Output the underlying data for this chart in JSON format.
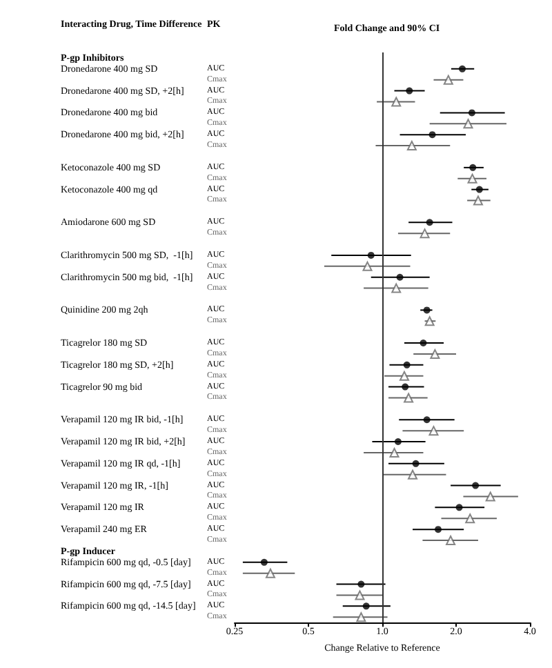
{
  "chart_data": {
    "type": "scatter",
    "orientation": "horizontal",
    "title": "Fold Change and 90% CI",
    "ylabel": "Interacting Drug, Time Difference",
    "xlabel": "Change Relative to Reference",
    "annotations": [
      "PK"
    ],
    "categories": [
      "P-gp Inhibitors",
      "Dronedarone 400 mg SD",
      null,
      "Dronedarone 400 mg SD, +2[h]",
      null,
      "Dronedarone 400 mg bid",
      null,
      "Dronedarone 400 mg bid, +2[h]",
      null,
      null,
      "Ketoconazole 400 mg SD",
      null,
      "Ketoconazole 400 mg qd",
      null,
      null,
      "Amiodarone 600 mg SD",
      null,
      null,
      "Clarithromycin 500 mg SD,  -1[h]",
      null,
      "Clarithromycin 500 mg bid,  -1[h]",
      null,
      null,
      "Quinidine 200 mg 2qh",
      null,
      null,
      "Ticagrelor 180 mg SD",
      null,
      "Ticagrelor 180 mg SD, +2[h]",
      null,
      "Ticagrelor 90 mg bid",
      null,
      null,
      "Verapamil 120 mg IR bid, -1[h]",
      null,
      "Verapamil 120 mg IR bid, +2[h]",
      null,
      "Verapamil 120 mg IR qd, -1[h]",
      null,
      "Verapamil 120 mg IR, -1[h]",
      null,
      "Verapamil 120 mg IR",
      null,
      "Verapamil 240 mg ER",
      null,
      "P-gp Inducer",
      "Rifampicin 600 mg qd, -0.5 [day]",
      null,
      "Rifampicin 600 mg qd, -7.5 [day]",
      null,
      "Rifampicin 600 mg qd, -14.5 [day]",
      null
    ],
    "series": [
      {
        "name": "AUC",
        "color": "#000000",
        "marker": "circle",
        "values": [
          null,
          2.12,
          null,
          1.29,
          null,
          2.32,
          null,
          1.6,
          null,
          null,
          2.34,
          null,
          2.49,
          null,
          null,
          1.56,
          null,
          null,
          0.9,
          null,
          1.18,
          null,
          null,
          1.52,
          null,
          null,
          1.47,
          null,
          1.26,
          null,
          1.24,
          null,
          null,
          1.52,
          null,
          1.16,
          null,
          1.37,
          null,
          2.4,
          null,
          2.06,
          null,
          1.69,
          null,
          null,
          0.33,
          null,
          0.82,
          null,
          0.86,
          null
        ],
        "errors": [
          null,
          [
            1.91,
            2.37
          ],
          null,
          [
            1.12,
            1.49
          ],
          null,
          [
            1.72,
            3.16
          ],
          null,
          [
            1.18,
            2.19
          ],
          null,
          null,
          [
            2.15,
            2.59
          ],
          null,
          [
            2.31,
            2.71
          ],
          null,
          null,
          [
            1.28,
            1.93
          ],
          null,
          null,
          [
            0.62,
            1.31
          ],
          null,
          [
            0.9,
            1.56
          ],
          null,
          null,
          [
            1.43,
            1.6
          ],
          null,
          null,
          [
            1.23,
            1.78
          ],
          null,
          [
            1.07,
            1.47
          ],
          null,
          [
            1.06,
            1.48
          ],
          null,
          null,
          [
            1.17,
            1.97
          ],
          null,
          [
            0.91,
            1.5
          ],
          null,
          [
            1.06,
            1.79
          ],
          null,
          [
            1.9,
            3.04
          ],
          null,
          [
            1.64,
            2.61
          ],
          null,
          [
            1.33,
            2.15
          ],
          null,
          null,
          [
            0.27,
            0.41
          ],
          null,
          [
            0.65,
            1.03
          ],
          null,
          [
            0.69,
            1.08
          ],
          null
        ]
      },
      {
        "name": "Cmax",
        "color": "#666666",
        "marker": "triangle",
        "values": [
          null,
          null,
          1.86,
          null,
          1.14,
          null,
          2.24,
          null,
          1.32,
          null,
          null,
          2.33,
          null,
          2.46,
          null,
          null,
          1.49,
          null,
          null,
          0.87,
          null,
          1.14,
          null,
          null,
          1.56,
          null,
          null,
          1.64,
          null,
          1.23,
          null,
          1.28,
          null,
          null,
          1.62,
          null,
          1.12,
          null,
          1.33,
          null,
          2.76,
          null,
          2.28,
          null,
          1.9,
          null,
          null,
          0.35,
          null,
          0.81,
          null,
          0.82
        ],
        "errors": [
          null,
          null,
          [
            1.62,
            2.14
          ],
          null,
          [
            0.95,
            1.36
          ],
          null,
          [
            1.56,
            3.21
          ],
          null,
          [
            0.94,
            1.89
          ],
          null,
          null,
          [
            2.03,
            2.66
          ],
          null,
          [
            2.22,
            2.76
          ],
          null,
          null,
          [
            1.16,
            1.89
          ],
          null,
          null,
          [
            0.58,
            1.3
          ],
          null,
          [
            0.84,
            1.54
          ],
          null,
          null,
          [
            1.49,
            1.65
          ],
          null,
          null,
          [
            1.34,
            2.0
          ],
          null,
          [
            1.02,
            1.47
          ],
          null,
          [
            1.06,
            1.53
          ],
          null,
          null,
          [
            1.21,
            2.15
          ],
          null,
          [
            0.84,
            1.47
          ],
          null,
          [
            1.0,
            1.82
          ],
          null,
          [
            2.14,
            3.58
          ],
          null,
          [
            1.74,
            2.93
          ],
          null,
          [
            1.46,
            2.46
          ],
          null,
          null,
          [
            0.27,
            0.44
          ],
          null,
          [
            0.65,
            1.01
          ],
          null,
          [
            0.63,
            1.05
          ]
        ]
      }
    ],
    "log": "x",
    "xlim": [
      0.25,
      4
    ],
    "xticks": [
      0.25,
      0.5,
      {
        "value": 1,
        "label": "1.0"
      },
      {
        "value": 2,
        "label": "2.0"
      },
      {
        "value": 4,
        "label": "4.0"
      }
    ],
    "ref_lines": [
      {
        "axis": "x",
        "value": 1,
        "label": null,
        "color": "#333333"
      }
    ],
    "grid": false,
    "legend": false
  }
}
